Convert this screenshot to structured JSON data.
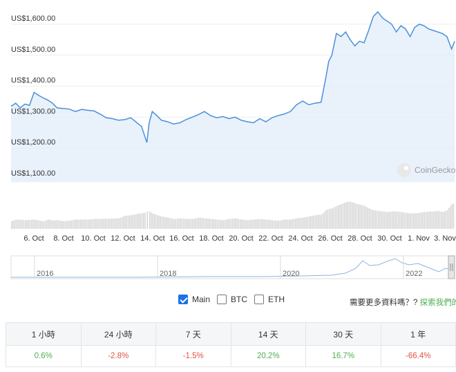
{
  "chart_data": {
    "type": "area",
    "y_axis": {
      "ticks": [
        "US$1,600.00",
        "US$1,500.00",
        "US$1,400.00",
        "US$1,300.00",
        "US$1,200.00",
        "US$1,100.00"
      ],
      "values": [
        1600,
        1500,
        1400,
        1300,
        1200,
        1100
      ],
      "range": [
        1090,
        1660
      ]
    },
    "x_axis": {
      "ticks": [
        "6. Oct",
        "8. Oct",
        "10. Oct",
        "12. Oct",
        "14. Oct",
        "16. Oct",
        "18. Oct",
        "20. Oct",
        "22. Oct",
        "24. Oct",
        "26. Oct",
        "28. Oct",
        "30. Oct",
        "1. Nov",
        "3. Nov"
      ]
    },
    "series": [
      {
        "x": [
          5,
          5.3,
          5.6,
          5.9,
          6.2,
          6.5,
          6.8,
          7.1,
          7.4,
          7.7,
          8,
          8.4,
          8.8,
          9.2,
          9.6,
          10,
          10.4,
          10.8,
          11.2,
          11.6,
          12,
          12.4,
          12.8,
          13.2,
          13.5,
          13.7,
          13.85,
          14,
          14.2,
          14.5,
          14.8,
          15.2,
          15.6,
          16,
          16.4,
          16.8,
          17.2,
          17.6,
          18,
          18.4,
          18.8,
          19.2,
          19.6,
          20,
          20.4,
          20.8,
          21.2,
          21.6,
          22,
          22.4,
          22.8,
          23.2,
          23.6,
          24,
          24.4,
          24.8,
          25.2,
          25.5,
          25.7,
          25.9,
          26.2,
          26.5,
          26.8,
          27.1,
          27.4,
          27.7,
          28,
          28.3,
          28.6,
          28.9,
          29.2,
          29.5,
          29.8,
          30.1,
          30.4,
          30.7,
          31,
          31.3,
          31.6,
          31.9,
          32.2,
          32.5,
          32.8,
          33.1,
          33.4,
          33.7,
          33.9
        ],
        "y": [
          1335,
          1345,
          1330,
          1342,
          1338,
          1380,
          1370,
          1362,
          1355,
          1345,
          1330,
          1328,
          1326,
          1318,
          1325,
          1322,
          1320,
          1310,
          1298,
          1295,
          1290,
          1292,
          1298,
          1282,
          1270,
          1240,
          1218,
          1282,
          1318,
          1305,
          1290,
          1285,
          1278,
          1282,
          1292,
          1300,
          1308,
          1318,
          1305,
          1298,
          1302,
          1295,
          1300,
          1290,
          1285,
          1282,
          1295,
          1285,
          1298,
          1305,
          1310,
          1318,
          1340,
          1352,
          1340,
          1345,
          1348,
          1425,
          1480,
          1500,
          1570,
          1560,
          1575,
          1550,
          1530,
          1545,
          1540,
          1580,
          1625,
          1640,
          1620,
          1610,
          1600,
          1575,
          1595,
          1585,
          1560,
          1590,
          1600,
          1595,
          1585,
          1580,
          1575,
          1570,
          1560,
          1520,
          1545
        ],
        "volume": [
          0.25,
          0.3,
          0.3,
          0.28,
          0.29,
          0.3,
          0.27,
          0.24,
          0.3,
          0.27,
          0.28,
          0.25,
          0.27,
          0.3,
          0.3,
          0.3,
          0.32,
          0.32,
          0.33,
          0.33,
          0.34,
          0.42,
          0.44,
          0.48,
          0.5,
          0.52,
          0.56,
          0.56,
          0.5,
          0.44,
          0.4,
          0.36,
          0.32,
          0.34,
          0.32,
          0.32,
          0.36,
          0.34,
          0.32,
          0.3,
          0.28,
          0.32,
          0.34,
          0.3,
          0.28,
          0.3,
          0.32,
          0.3,
          0.28,
          0.26,
          0.3,
          0.3,
          0.34,
          0.36,
          0.4,
          0.44,
          0.46,
          0.6,
          0.64,
          0.66,
          0.74,
          0.8,
          0.86,
          0.88,
          0.82,
          0.78,
          0.74,
          0.66,
          0.6,
          0.58,
          0.56,
          0.54,
          0.56,
          0.56,
          0.54,
          0.52,
          0.5,
          0.5,
          0.52,
          0.54,
          0.56,
          0.56,
          0.58,
          0.54,
          0.6,
          0.8,
          0.82
        ]
      }
    ],
    "navigator": {
      "ticks": [
        "2016",
        "2018",
        "2020",
        "2022"
      ]
    },
    "watermark": "CoinGecko",
    "colors": {
      "line": "#4a90d9",
      "fill": "#e4eefa",
      "volume": "#d3d3d3",
      "grid": "#eeeeee"
    }
  },
  "series_toggles": [
    {
      "label": "Main",
      "checked": true
    },
    {
      "label": "BTC",
      "checked": false
    },
    {
      "label": "ETH",
      "checked": false
    }
  ],
  "more_data": {
    "question": "需要更多資料嗎？?",
    "link": "探索我們的AP"
  },
  "returns": {
    "headers": [
      "1 小時",
      "24 小時",
      "7 天",
      "14 天",
      "30 天",
      "1 年"
    ],
    "values": [
      "0.6%",
      "-2.8%",
      "-1.5%",
      "20.2%",
      "16.7%",
      "-66.4%"
    ]
  }
}
